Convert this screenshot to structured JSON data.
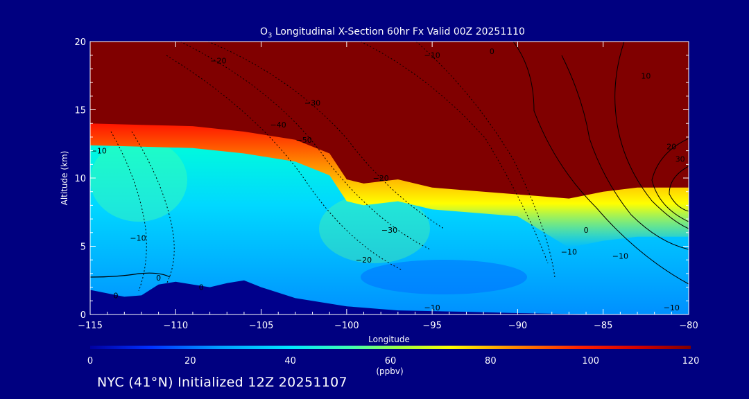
{
  "title": {
    "prefix": "O",
    "subscript": "3",
    "rest": " Longitudinal X-Section 60hr  Fx Valid 00Z 20251110"
  },
  "footer": "NYC (41°N) Initialized 12Z 20251107",
  "colors": {
    "background": "#000080",
    "stratosphere": "#800000",
    "terrain": "#00008b"
  },
  "chart_data": {
    "type": "heatmap",
    "xlabel": "Longitude",
    "ylabel": "Altitude (km)",
    "xlim": [
      -115,
      -80
    ],
    "ylim": [
      0,
      20
    ],
    "x_ticks": [
      -115,
      -110,
      -105,
      -100,
      -95,
      -90,
      -85,
      -80
    ],
    "x_tick_labels": [
      "−115",
      "−110",
      "−105",
      "−100",
      "−95",
      "−90",
      "−85",
      "−80"
    ],
    "y_ticks": [
      0,
      5,
      10,
      15,
      20
    ],
    "y_tick_labels": [
      "0",
      "5",
      "10",
      "15",
      "20"
    ],
    "colorbar": {
      "unit": "(ppbv)",
      "range": [
        0,
        120
      ],
      "ticks": [
        0,
        20,
        40,
        60,
        80,
        100,
        120
      ],
      "tick_labels": [
        "0",
        "20",
        "40",
        "60",
        "80",
        "100",
        "120"
      ],
      "stops": [
        {
          "v": 0,
          "c": "#0000a0"
        },
        {
          "v": 12,
          "c": "#0030ff"
        },
        {
          "v": 26,
          "c": "#00a0ff"
        },
        {
          "v": 40,
          "c": "#00e8ff"
        },
        {
          "v": 52,
          "c": "#40ffb0"
        },
        {
          "v": 62,
          "c": "#a0ff40"
        },
        {
          "v": 72,
          "c": "#ffff00"
        },
        {
          "v": 84,
          "c": "#ff9000"
        },
        {
          "v": 98,
          "c": "#ff2000"
        },
        {
          "v": 110,
          "c": "#d00000"
        },
        {
          "v": 120,
          "c": "#800000"
        }
      ]
    },
    "tropopause": [
      [
        -115,
        14.0
      ],
      [
        -112,
        13.9
      ],
      [
        -109,
        13.8
      ],
      [
        -106,
        13.4
      ],
      [
        -103,
        12.8
      ],
      [
        -101,
        11.8
      ],
      [
        -100,
        9.9
      ],
      [
        -99,
        9.6
      ],
      [
        -97,
        9.9
      ],
      [
        -95,
        9.3
      ],
      [
        -92,
        9.0
      ],
      [
        -90,
        8.8
      ],
      [
        -87,
        8.5
      ],
      [
        -85,
        9.0
      ],
      [
        -83,
        9.3
      ],
      [
        -80,
        9.3
      ]
    ],
    "terrain": [
      [
        -115,
        1.8
      ],
      [
        -113,
        1.3
      ],
      [
        -112,
        1.4
      ],
      [
        -111,
        2.2
      ],
      [
        -110,
        2.4
      ],
      [
        -109,
        2.2
      ],
      [
        -108,
        2.0
      ],
      [
        -107,
        2.3
      ],
      [
        -106,
        2.5
      ],
      [
        -105,
        2.0
      ],
      [
        -103,
        1.2
      ],
      [
        -100,
        0.6
      ],
      [
        -97,
        0.3
      ],
      [
        -93,
        0.2
      ],
      [
        -90,
        0.1
      ],
      [
        -85,
        0.0
      ],
      [
        -80,
        0.0
      ]
    ],
    "contour_labels": [
      {
        "lon": -107.5,
        "alt": 18.6,
        "text": "−20"
      },
      {
        "lon": -102,
        "alt": 15.5,
        "text": "−30"
      },
      {
        "lon": -104,
        "alt": 13.9,
        "text": "−40"
      },
      {
        "lon": -102.5,
        "alt": 12.8,
        "text": "−50"
      },
      {
        "lon": -95,
        "alt": 19.0,
        "text": "−10"
      },
      {
        "lon": -91.5,
        "alt": 19.3,
        "text": "0"
      },
      {
        "lon": -82.5,
        "alt": 17.5,
        "text": "10"
      },
      {
        "lon": -81,
        "alt": 12.3,
        "text": "20"
      },
      {
        "lon": -80.5,
        "alt": 11.4,
        "text": "30"
      },
      {
        "lon": -98,
        "alt": 10.0,
        "text": "−20"
      },
      {
        "lon": -114.5,
        "alt": 12.0,
        "text": "−10"
      },
      {
        "lon": -112.2,
        "alt": 5.6,
        "text": "−10"
      },
      {
        "lon": -97.5,
        "alt": 6.2,
        "text": "−30"
      },
      {
        "lon": -99,
        "alt": 4.0,
        "text": "−20"
      },
      {
        "lon": -86,
        "alt": 6.2,
        "text": "0"
      },
      {
        "lon": -87,
        "alt": 4.6,
        "text": "−10"
      },
      {
        "lon": -84,
        "alt": 4.3,
        "text": "−10"
      },
      {
        "lon": -95,
        "alt": 0.5,
        "text": "−10"
      },
      {
        "lon": -81,
        "alt": 0.5,
        "text": "−10"
      },
      {
        "lon": -111,
        "alt": 2.7,
        "text": "0"
      },
      {
        "lon": -108.5,
        "alt": 2.0,
        "text": "0"
      },
      {
        "lon": -113.5,
        "alt": 1.4,
        "text": "0"
      }
    ]
  }
}
